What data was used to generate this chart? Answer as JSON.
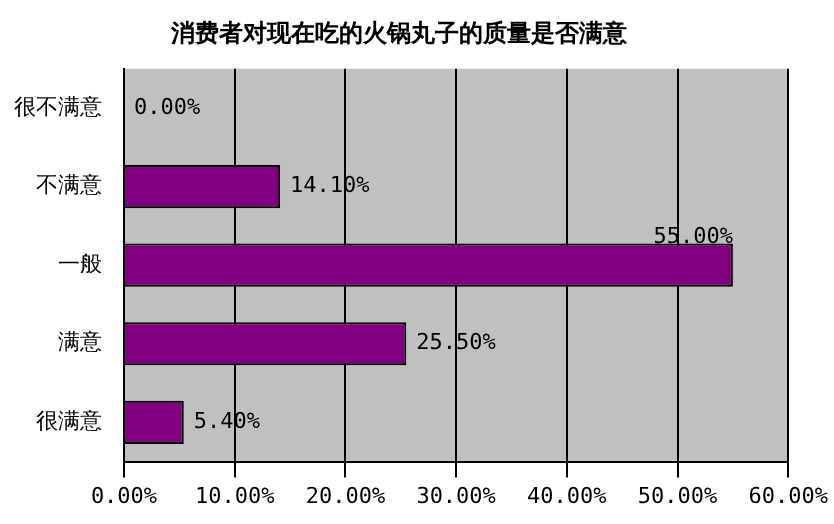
{
  "chart_data": {
    "type": "bar",
    "orientation": "horizontal",
    "title": "消费者对现在吃的火锅丸子的质量是否满意",
    "categories": [
      "很不满意",
      "不满意",
      "一般",
      "满意",
      "很满意"
    ],
    "values": [
      0,
      14.1,
      55,
      25.5,
      5.4
    ],
    "value_labels": [
      "0.00%",
      "14.10%",
      "55.00%",
      "25.50%",
      "5.40%"
    ],
    "color": "#800080",
    "xlim": [
      0,
      60
    ],
    "xticks": [
      {
        "value": 0,
        "label": "0.00%"
      },
      {
        "value": 10,
        "label": "10.00%"
      },
      {
        "value": 20,
        "label": "20.00%"
      },
      {
        "value": 30,
        "label": "30.00%"
      },
      {
        "value": 40,
        "label": "40.00%"
      },
      {
        "value": 50,
        "label": "50.00%"
      },
      {
        "value": 60,
        "label": "60.00%"
      }
    ],
    "grid": "x",
    "legend": false
  }
}
